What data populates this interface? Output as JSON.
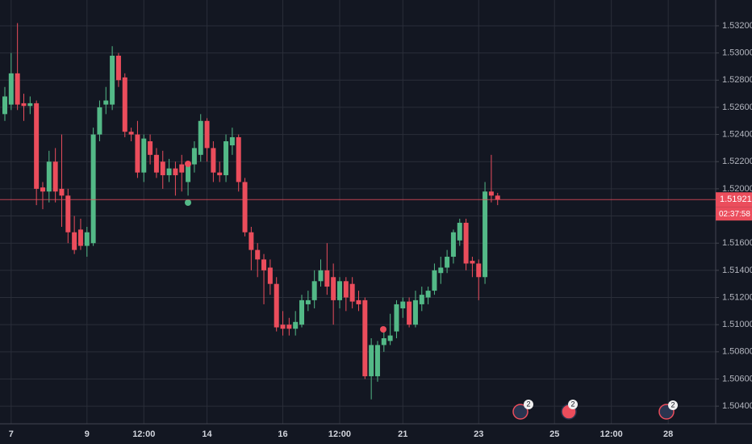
{
  "chart_data": {
    "type": "candlestick",
    "categories": [
      null,
      "7",
      null,
      null,
      null,
      null,
      null,
      null,
      null,
      null,
      null,
      null,
      null,
      "9",
      null,
      null,
      null,
      null,
      null,
      null,
      null,
      null,
      "12:00",
      null,
      null,
      null,
      null,
      null,
      null,
      null,
      null,
      null,
      "14",
      null,
      null,
      null,
      null,
      null,
      null,
      null,
      null,
      null,
      null,
      null,
      "16",
      null,
      null,
      null,
      null,
      null,
      null,
      null,
      null,
      "12:00",
      null,
      null,
      null,
      null,
      null,
      null,
      null,
      null,
      null,
      "21",
      null,
      null,
      null,
      null,
      null,
      null,
      null,
      null,
      null,
      null,
      null,
      "23",
      null,
      null,
      null,
      null,
      null,
      null,
      null,
      null,
      null,
      null,
      null,
      "25",
      null,
      null,
      null,
      null,
      null,
      null,
      null,
      null,
      "12:00",
      null,
      null,
      null,
      null,
      null,
      null,
      null,
      null,
      "28",
      null,
      null,
      null,
      null,
      null,
      null,
      null
    ],
    "open": [
      1.5255,
      1.5262,
      1.5285,
      1.5263,
      1.5261,
      1.5263,
      1.5201,
      1.5198,
      1.522,
      1.52,
      1.5195,
      1.5168,
      1.517,
      1.5158,
      1.516,
      1.524,
      1.5262,
      1.5262,
      1.5298,
      1.5282,
      1.5242,
      1.524,
      1.5212,
      1.5235,
      1.5225,
      1.522,
      1.521,
      1.5215,
      1.5218,
      1.5205,
      1.5218,
      1.5225,
      1.525,
      1.523,
      1.5212,
      1.521,
      1.5232,
      1.5238,
      1.5205,
      1.5168,
      1.5155,
      1.5148,
      1.5142,
      1.513,
      1.51,
      1.51,
      1.5097,
      1.51,
      1.5115,
      1.5118,
      1.5132,
      1.514,
      1.5135,
      1.5118,
      1.5132,
      1.513,
      1.5118,
      1.5118,
      1.5062,
      1.5062,
      1.5085,
      1.5088,
      1.5095,
      1.5112,
      1.5117,
      1.51,
      1.5115,
      1.512,
      1.5125,
      1.5138,
      1.5142,
      1.515,
      1.5162,
      1.5175,
      1.5147,
      1.5145,
      1.5135,
      1.5198,
      1.5195,
      null,
      null,
      null,
      null,
      null,
      null,
      null,
      null,
      null,
      null,
      null,
      null,
      null,
      null,
      null,
      null,
      null,
      null,
      null,
      null,
      null,
      null,
      null,
      null,
      null,
      null,
      null,
      null,
      null,
      null,
      null,
      null,
      null,
      null
    ],
    "high": [
      1.5275,
      1.53,
      1.5322,
      1.527,
      1.5268,
      1.5265,
      1.5205,
      1.5228,
      1.523,
      1.524,
      1.52,
      1.518,
      1.5178,
      1.5172,
      1.5245,
      1.5265,
      1.5275,
      1.5305,
      1.53,
      1.5285,
      1.5245,
      1.525,
      1.524,
      1.524,
      1.523,
      1.5228,
      1.5222,
      1.522,
      1.5225,
      1.522,
      1.5235,
      1.5255,
      1.5252,
      1.5235,
      1.522,
      1.524,
      1.5245,
      1.524,
      1.5208,
      1.5172,
      1.516,
      1.5152,
      1.5148,
      1.5135,
      1.511,
      1.5105,
      1.511,
      1.5122,
      1.5125,
      1.514,
      1.5148,
      1.516,
      1.5145,
      1.5135,
      1.5135,
      1.5135,
      1.5125,
      1.512,
      1.509,
      1.5088,
      1.5095,
      1.5108,
      1.5118,
      1.512,
      1.512,
      1.5125,
      1.5128,
      1.5128,
      1.5145,
      1.515,
      1.5155,
      1.517,
      1.5178,
      1.5178,
      1.515,
      1.5148,
      1.5205,
      1.5225,
      1.5197,
      null,
      null,
      null,
      null,
      null,
      null,
      null,
      null,
      null,
      null,
      null,
      null,
      null,
      null,
      null,
      null,
      null,
      null,
      null,
      null,
      null,
      null,
      null,
      null,
      null,
      null,
      null,
      null,
      null,
      null,
      null,
      null,
      null,
      null
    ],
    "low": [
      1.525,
      1.5258,
      1.5258,
      1.525,
      1.5255,
      1.5188,
      1.5185,
      1.519,
      1.519,
      1.5172,
      1.516,
      1.5152,
      1.5155,
      1.515,
      1.5158,
      1.5235,
      1.5255,
      1.5258,
      1.5275,
      1.5238,
      1.5235,
      1.5208,
      1.5205,
      1.5218,
      1.5208,
      1.52,
      1.5205,
      1.5195,
      1.5198,
      1.5195,
      1.5212,
      1.522,
      1.522,
      1.5205,
      1.5205,
      1.5205,
      1.5225,
      1.5198,
      1.5165,
      1.514,
      1.5135,
      1.5115,
      1.5122,
      1.5095,
      1.5092,
      1.5092,
      1.5092,
      1.5098,
      1.511,
      1.5112,
      1.5128,
      1.5122,
      1.51,
      1.5112,
      1.511,
      1.5112,
      1.511,
      1.506,
      1.5045,
      1.5058,
      1.508,
      1.5085,
      1.509,
      1.5105,
      1.5098,
      1.5098,
      1.511,
      1.5115,
      1.5122,
      1.513,
      1.5138,
      1.5145,
      1.5158,
      1.514,
      1.5135,
      1.5118,
      1.513,
      1.519,
      1.5188,
      null,
      null,
      null,
      null,
      null,
      null,
      null,
      null,
      null,
      null,
      null,
      null,
      null,
      null,
      null,
      null,
      null,
      null,
      null,
      null,
      null,
      null,
      null,
      null,
      null,
      null,
      null,
      null,
      null,
      null,
      null,
      null,
      null,
      null
    ],
    "close": [
      1.5268,
      1.5285,
      1.5262,
      1.5261,
      1.5263,
      1.52,
      1.5198,
      1.522,
      1.5198,
      1.5195,
      1.5168,
      1.5155,
      1.5158,
      1.5168,
      1.524,
      1.526,
      1.5265,
      1.5298,
      1.528,
      1.5242,
      1.524,
      1.5212,
      1.5237,
      1.5225,
      1.5212,
      1.521,
      1.5215,
      1.521,
      1.5212,
      1.5218,
      1.523,
      1.525,
      1.523,
      1.5212,
      1.521,
      1.5235,
      1.5238,
      1.5205,
      1.5168,
      1.5155,
      1.5148,
      1.514,
      1.513,
      1.5098,
      1.5097,
      1.5097,
      1.5102,
      1.5118,
      1.5118,
      1.5132,
      1.514,
      1.5128,
      1.5118,
      1.5132,
      1.512,
      1.5117,
      1.5115,
      1.5062,
      1.5085,
      1.5085,
      1.509,
      1.5092,
      1.5115,
      1.5117,
      1.51,
      1.5118,
      1.5122,
      1.5125,
      1.514,
      1.5142,
      1.515,
      1.5168,
      1.5175,
      1.5145,
      1.5145,
      1.5135,
      1.5198,
      1.5195,
      1.5192,
      null,
      null,
      null,
      null,
      null,
      null,
      null,
      null,
      null,
      null,
      null,
      null,
      null,
      null,
      null,
      null,
      null,
      null,
      null,
      null,
      null,
      null,
      null,
      null,
      null,
      null,
      null,
      null,
      null,
      null,
      null,
      null,
      null,
      null
    ],
    "up_color": "#53b987",
    "down_color": "#eb4d5c",
    "ylim": [
      1.5027,
      1.5339
    ],
    "yticks": [
      {
        "value": 1.504,
        "label": "1.50400"
      },
      {
        "value": 1.506,
        "label": "1.50600"
      },
      {
        "value": 1.508,
        "label": "1.50800"
      },
      {
        "value": 1.51,
        "label": "1.51000"
      },
      {
        "value": 1.512,
        "label": "1.51200"
      },
      {
        "value": 1.514,
        "label": "1.51400"
      },
      {
        "value": 1.516,
        "label": "1.51600"
      },
      {
        "value": 1.518,
        "label": "1.51800"
      },
      {
        "value": 1.52,
        "label": "1.52000"
      },
      {
        "value": 1.522,
        "label": "1.52200"
      },
      {
        "value": 1.524,
        "label": "1.52400"
      },
      {
        "value": 1.526,
        "label": "1.52600"
      },
      {
        "value": 1.528,
        "label": "1.52800"
      },
      {
        "value": 1.53,
        "label": "1.53000"
      },
      {
        "value": 1.532,
        "label": "1.53200"
      }
    ],
    "grid": true,
    "last_price": {
      "value": 1.51921,
      "label": "1.51921"
    },
    "countdown": "02:37:58",
    "events": [
      {
        "badge": "2"
      },
      {
        "badge": "2"
      },
      {
        "badge": "2"
      }
    ]
  }
}
